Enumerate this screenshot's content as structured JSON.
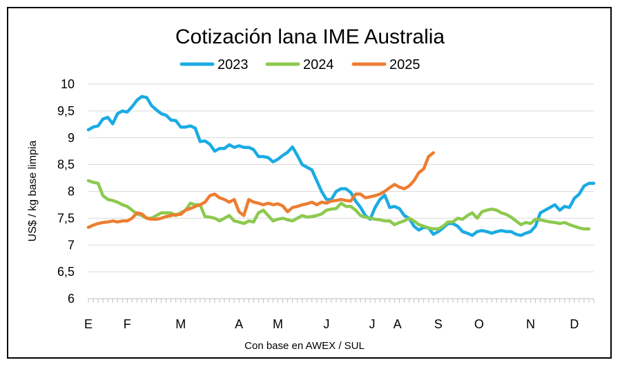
{
  "chart_data": {
    "type": "line",
    "title": "Cotización lana IME Australia",
    "ylabel": "US$ / kg base limpia",
    "xlabel": "Con base en AWEX / SUL",
    "ylim": [
      6,
      10
    ],
    "yticks": [
      "6",
      "6,5",
      "7",
      "7,5",
      "8",
      "8,5",
      "9",
      "9,5",
      "10"
    ],
    "x_domain": [
      0,
      52
    ],
    "month_labels": [
      {
        "label": "E",
        "pos": 0
      },
      {
        "label": "F",
        "pos": 4
      },
      {
        "label": "M",
        "pos": 9.5
      },
      {
        "label": "A",
        "pos": 15.5
      },
      {
        "label": "M",
        "pos": 19.5
      },
      {
        "label": "J",
        "pos": 24.5
      },
      {
        "label": "J",
        "pos": 29.2
      },
      {
        "label": "A",
        "pos": 31.8
      },
      {
        "label": "S",
        "pos": 36
      },
      {
        "label": "O",
        "pos": 40.2
      },
      {
        "label": "N",
        "pos": 45.5
      },
      {
        "label": "D",
        "pos": 50
      }
    ],
    "grid": true,
    "legend_position": "top",
    "series": [
      {
        "name": "2023",
        "color": "#1aabe3",
        "x": [
          0,
          0.5,
          1,
          1.5,
          2,
          2.5,
          3,
          3.5,
          4,
          4.5,
          5,
          5.5,
          6,
          6.5,
          7,
          7.5,
          8,
          8.5,
          9,
          9.5,
          10,
          10.5,
          11,
          11.5,
          12,
          12.5,
          13,
          13.5,
          14,
          14.5,
          15,
          15.5,
          16,
          16.5,
          17,
          17.5,
          18,
          18.5,
          19,
          19.5,
          20,
          20.5,
          21,
          21.5,
          22,
          22.5,
          23,
          23.5,
          24,
          24.5,
          25,
          25.5,
          26,
          26.5,
          27,
          27.5,
          28,
          28.5,
          29,
          29.5,
          30,
          30.5,
          31,
          31.5,
          32,
          32.5,
          33,
          33.5,
          34,
          34.5,
          35,
          35.5,
          36,
          36.5,
          37,
          37.5,
          38,
          38.5,
          39,
          39.5,
          40,
          40.5,
          41,
          41.5,
          42,
          42.5,
          43,
          43.5,
          44,
          44.5,
          45,
          45.5,
          46,
          46.5,
          47,
          47.5,
          48,
          48.5,
          49,
          49.5,
          50,
          50.5,
          51,
          51.5,
          52
        ],
        "values": [
          9.15,
          9.2,
          9.22,
          9.35,
          9.38,
          9.26,
          9.45,
          9.5,
          9.48,
          9.58,
          9.7,
          9.77,
          9.75,
          9.6,
          9.52,
          9.45,
          9.42,
          9.33,
          9.32,
          9.2,
          9.2,
          9.22,
          9.18,
          8.93,
          8.94,
          8.88,
          8.75,
          8.8,
          8.8,
          8.87,
          8.82,
          8.85,
          8.82,
          8.82,
          8.78,
          8.65,
          8.65,
          8.63,
          8.55,
          8.6,
          8.67,
          8.73,
          8.83,
          8.67,
          8.5,
          8.45,
          8.4,
          8.2,
          8.0,
          7.85,
          7.85,
          8.0,
          8.05,
          8.05,
          7.98,
          7.82,
          7.7,
          7.55,
          7.48,
          7.7,
          7.85,
          7.93,
          7.7,
          7.72,
          7.68,
          7.55,
          7.5,
          7.35,
          7.28,
          7.33,
          7.32,
          7.2,
          7.25,
          7.32,
          7.4,
          7.4,
          7.35,
          7.25,
          7.22,
          7.18,
          7.25,
          7.27,
          7.25,
          7.22,
          7.25,
          7.27,
          7.25,
          7.25,
          7.2,
          7.18,
          7.22,
          7.25,
          7.35,
          7.6,
          7.65,
          7.7,
          7.75,
          7.65,
          7.72,
          7.7,
          7.87,
          7.95,
          8.1,
          8.15,
          8.15
        ]
      },
      {
        "name": "2024",
        "color": "#8dc94e",
        "x": [
          0,
          0.5,
          1,
          1.5,
          2,
          2.5,
          3,
          3.5,
          4,
          4.5,
          5,
          5.5,
          6,
          6.5,
          7,
          7.5,
          8,
          8.5,
          9,
          9.5,
          10,
          10.5,
          11,
          11.5,
          12,
          12.5,
          13,
          13.5,
          14,
          14.5,
          15,
          15.5,
          16,
          16.5,
          17,
          17.5,
          18,
          18.5,
          19,
          19.5,
          20,
          20.5,
          21,
          21.5,
          22,
          22.5,
          23,
          23.5,
          24,
          24.5,
          25,
          25.5,
          26,
          26.5,
          27,
          27.5,
          28,
          28.5,
          29,
          29.5,
          30,
          30.5,
          31,
          31.5,
          32,
          32.5,
          33,
          33.5,
          34,
          34.5,
          35,
          35.5,
          36,
          36.5,
          37,
          37.5,
          38,
          38.5,
          39,
          39.5,
          40,
          40.5,
          41,
          41.5,
          42,
          42.5,
          43,
          43.5,
          44,
          44.5,
          45,
          45.5,
          46,
          46.5,
          47,
          47.5,
          48,
          48.5,
          49,
          49.5,
          50,
          50.5,
          51,
          51.5
        ],
        "values": [
          8.2,
          8.17,
          8.15,
          7.92,
          7.85,
          7.83,
          7.8,
          7.75,
          7.72,
          7.65,
          7.58,
          7.55,
          7.5,
          7.5,
          7.55,
          7.6,
          7.6,
          7.6,
          7.55,
          7.6,
          7.65,
          7.78,
          7.75,
          7.75,
          7.53,
          7.52,
          7.5,
          7.45,
          7.5,
          7.55,
          7.45,
          7.43,
          7.4,
          7.45,
          7.43,
          7.6,
          7.65,
          7.55,
          7.45,
          7.48,
          7.5,
          7.47,
          7.45,
          7.5,
          7.55,
          7.52,
          7.53,
          7.55,
          7.58,
          7.65,
          7.67,
          7.68,
          7.78,
          7.72,
          7.72,
          7.65,
          7.55,
          7.52,
          7.5,
          7.48,
          7.47,
          7.45,
          7.45,
          7.38,
          7.42,
          7.45,
          7.5,
          7.45,
          7.38,
          7.35,
          7.32,
          7.3,
          7.3,
          7.35,
          7.43,
          7.43,
          7.5,
          7.48,
          7.55,
          7.6,
          7.5,
          7.62,
          7.65,
          7.67,
          7.65,
          7.6,
          7.57,
          7.52,
          7.45,
          7.38,
          7.42,
          7.4,
          7.48,
          7.47,
          7.45,
          7.43,
          7.42,
          7.4,
          7.42,
          7.38,
          7.35,
          7.32,
          7.3,
          7.3
        ]
      },
      {
        "name": "2025",
        "color": "#ed7d31",
        "x": [
          0,
          0.5,
          1,
          1.5,
          2,
          2.5,
          3,
          3.5,
          4,
          4.5,
          5,
          5.5,
          6,
          6.5,
          7,
          7.5,
          8,
          8.5,
          9,
          9.5,
          10,
          10.5,
          11,
          11.5,
          12,
          12.5,
          13,
          13.5,
          14,
          14.5,
          15,
          15.5,
          16,
          16.5,
          17,
          17.5,
          18,
          18.5,
          19,
          19.5,
          20,
          20.5,
          21,
          21.5,
          22,
          22.5,
          23,
          23.5,
          24,
          24.5,
          25,
          25.5,
          26,
          26.5,
          27,
          27.5,
          28,
          28.5,
          29,
          29.5,
          30,
          30.5,
          31,
          31.5,
          32,
          32.5,
          33,
          33.5,
          34,
          34.5,
          35,
          35.5
        ],
        "values": [
          7.33,
          7.37,
          7.4,
          7.42,
          7.43,
          7.45,
          7.43,
          7.45,
          7.45,
          7.5,
          7.6,
          7.58,
          7.5,
          7.48,
          7.48,
          7.5,
          7.53,
          7.55,
          7.57,
          7.57,
          7.65,
          7.68,
          7.72,
          7.75,
          7.8,
          7.92,
          7.95,
          7.88,
          7.85,
          7.8,
          7.85,
          7.62,
          7.55,
          7.85,
          7.8,
          7.78,
          7.75,
          7.78,
          7.75,
          7.77,
          7.73,
          7.62,
          7.7,
          7.72,
          7.75,
          7.77,
          7.8,
          7.75,
          7.8,
          7.78,
          7.82,
          7.83,
          7.85,
          7.83,
          7.82,
          7.95,
          7.95,
          7.88,
          7.9,
          7.92,
          7.95,
          8.0,
          8.07,
          8.13,
          8.08,
          8.05,
          8.1,
          8.2,
          8.35,
          8.42,
          8.65,
          8.72
        ]
      }
    ]
  }
}
